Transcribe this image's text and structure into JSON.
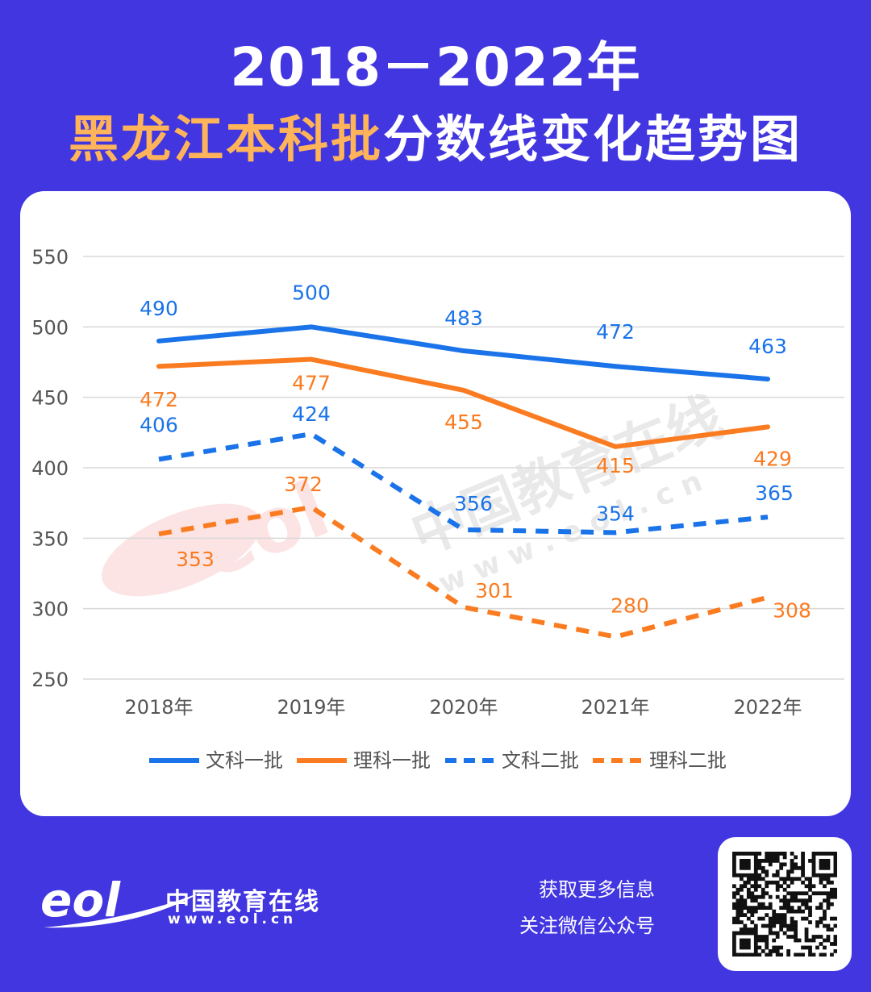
{
  "header": {
    "title_line1": "2018－2022年",
    "title_highlight": "黑龙江本科批",
    "title_rest": "分数线变化趋势图"
  },
  "chart_data": {
    "type": "line",
    "categories": [
      "2018年",
      "2019年",
      "2020年",
      "2021年",
      "2022年"
    ],
    "ylim": [
      250,
      550
    ],
    "yticks": [
      550,
      500,
      450,
      400,
      350,
      300,
      250
    ],
    "grid": true,
    "legend_position": "bottom",
    "series": [
      {
        "name": "文科一批",
        "values": [
          490,
          500,
          483,
          472,
          463
        ],
        "color": "#1a73e8",
        "dashed": false,
        "label_pos": "above"
      },
      {
        "name": "理科一批",
        "values": [
          472,
          477,
          455,
          415,
          429
        ],
        "color": "#fa7b20",
        "dashed": false,
        "label_pos": "below"
      },
      {
        "name": "文科二批",
        "values": [
          406,
          424,
          356,
          354,
          365
        ],
        "color": "#1a73e8",
        "dashed": true,
        "label_pos": "above"
      },
      {
        "name": "理科二批",
        "values": [
          353,
          372,
          301,
          280,
          308
        ],
        "color": "#fa7b20",
        "dashed": true,
        "label_pos": "mixed"
      }
    ]
  },
  "watermark": {
    "text": "中国教育在线",
    "url": "w w w . e o l . c n"
  },
  "footer": {
    "brand_name": "中国教育在线",
    "brand_url": "www.eol.cn",
    "info_line1": "获取更多信息",
    "info_line2": "关注微信公众号"
  }
}
